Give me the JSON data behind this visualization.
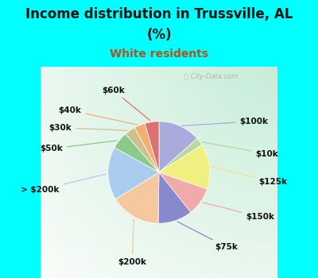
{
  "title_line1": "Income distribution in Trussville, AL",
  "title_line2": "(%)",
  "subtitle": "White residents",
  "bg_color": "#00ffff",
  "chart_bg_left": "#c8e8d0",
  "chart_bg_right": "#e8f4f0",
  "labels": [
    "$100k",
    "$10k",
    "$125k",
    "$150k",
    "$75k",
    "$200k",
    "> $200k",
    "$50k",
    "$30k",
    "$40k",
    "$60k"
  ],
  "sizes": [
    13.5,
    2.5,
    14.5,
    9.0,
    11.0,
    16.0,
    17.0,
    5.5,
    3.5,
    3.5,
    4.5
  ],
  "colors": [
    "#aaaadd",
    "#b8d8a0",
    "#f0f080",
    "#f0aaaa",
    "#8888cc",
    "#f5c8a0",
    "#aaccee",
    "#88cc88",
    "#d0c090",
    "#f0b070",
    "#dd7070"
  ],
  "line_colors": [
    "#aaaadd",
    "#b8d8a0",
    "#e8e880",
    "#f0aaaa",
    "#8888cc",
    "#f5c8a0",
    "#aaccee",
    "#88cc88",
    "#d0c090",
    "#f0b070",
    "#dd7070"
  ],
  "title_fontsize": 12,
  "subtitle_fontsize": 10,
  "subtitle_color": "#aa5522",
  "label_fontsize": 7.5,
  "watermark_text": "Ⓜ City-Data.com"
}
